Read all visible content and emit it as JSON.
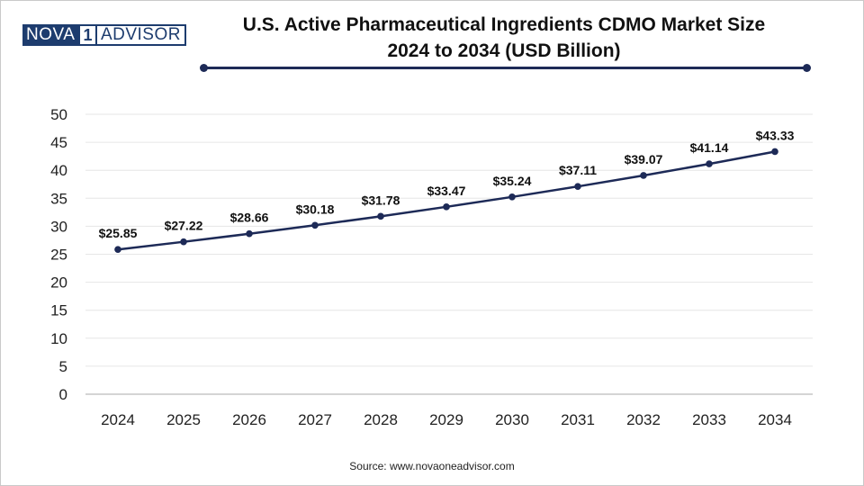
{
  "logo": {
    "left": "NOVA",
    "mark": "1",
    "right": "ADVISOR"
  },
  "title_line1": "U.S. Active Pharmaceutical Ingredients CDMO Market Size",
  "title_line2": "2024 to 2034 (USD Billion)",
  "source": "Source: www.novaoneadvisor.com",
  "colors": {
    "line": "#1d2a57",
    "grid": "#e6e6e6",
    "axis": "#bbbbbb"
  },
  "chart_data": {
    "type": "line",
    "title": "U.S. Active Pharmaceutical Ingredients CDMO Market Size 2024 to 2034 (USD Billion)",
    "xlabel": "",
    "ylabel": "",
    "categories": [
      "2024",
      "2025",
      "2026",
      "2027",
      "2028",
      "2029",
      "2030",
      "2031",
      "2032",
      "2033",
      "2034"
    ],
    "values": [
      25.85,
      27.22,
      28.66,
      30.18,
      31.78,
      33.47,
      35.24,
      37.11,
      39.07,
      41.14,
      43.33
    ],
    "data_labels": [
      "$25.85",
      "$27.22",
      "$28.66",
      "$30.18",
      "$31.78",
      "$33.47",
      "$35.24",
      "$37.11",
      "$39.07",
      "$41.14",
      "$43.33"
    ],
    "yticks": [
      0,
      5,
      10,
      15,
      20,
      25,
      30,
      35,
      40,
      45,
      50
    ],
    "ylim": [
      0,
      50
    ],
    "grid": true,
    "legend": "none"
  }
}
